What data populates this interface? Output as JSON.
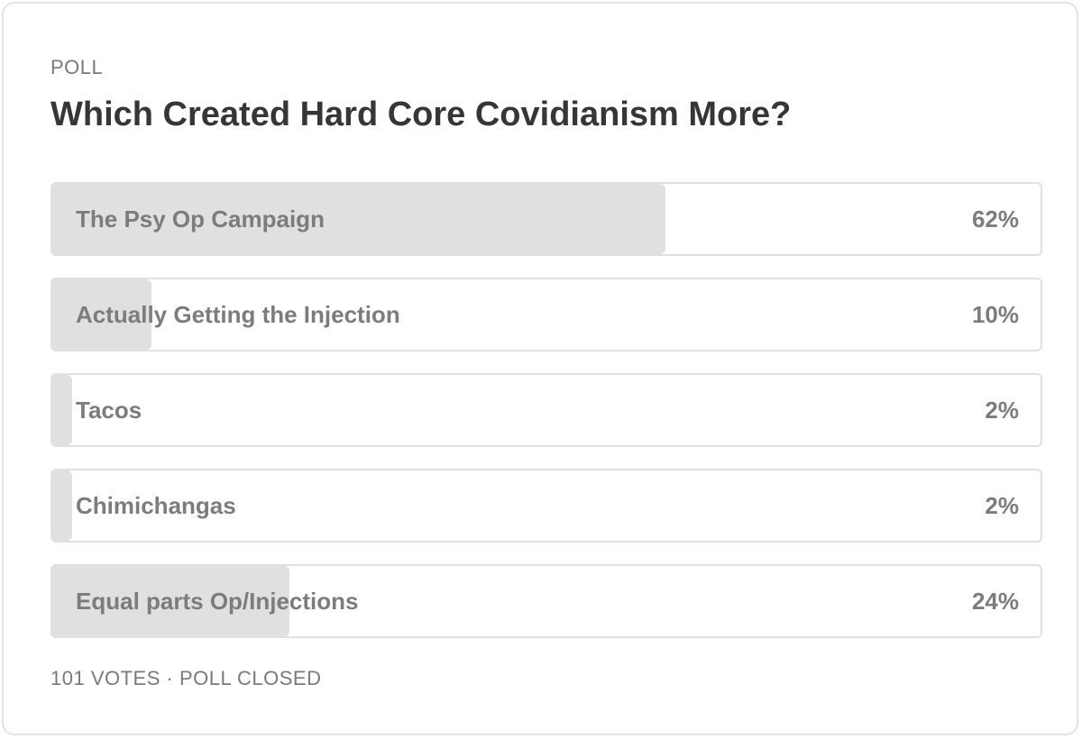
{
  "poll": {
    "label": "POLL",
    "title": "Which Created Hard Core Covidianism More?",
    "options": [
      {
        "label": "The Psy Op Campaign",
        "percent_text": "62%",
        "percent": 62
      },
      {
        "label": "Actually Getting the Injection",
        "percent_text": "10%",
        "percent": 10
      },
      {
        "label": "Tacos",
        "percent_text": "2%",
        "percent": 2
      },
      {
        "label": "Chimichangas",
        "percent_text": "2%",
        "percent": 2
      },
      {
        "label": "Equal parts Op/Injections",
        "percent_text": "24%",
        "percent": 24
      }
    ],
    "footer": "101 VOTES · POLL CLOSED"
  },
  "colors": {
    "fill": "#e0e0e0",
    "border": "#e0e0e0",
    "title": "#363636",
    "muted": "#7a7a7a"
  }
}
